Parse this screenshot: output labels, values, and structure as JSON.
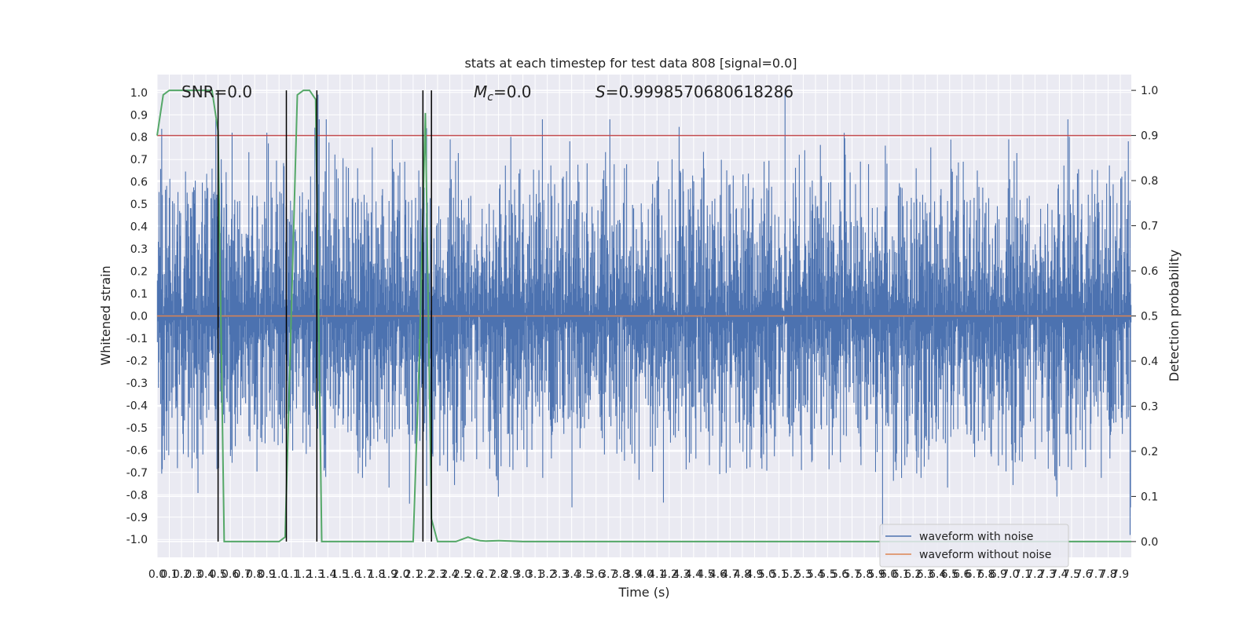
{
  "chart_data": {
    "type": "line",
    "title": "stats at each timestep for test data 808 [signal=0.0]",
    "xlabel": "Time (s)",
    "ylabel": "Whitened strain",
    "y2label": "Detection probability",
    "xlim": [
      0.0,
      7.99
    ],
    "ylim": [
      -1.08,
      1.08
    ],
    "y2lim": [
      -0.035,
      1.035
    ],
    "x_ticks": [
      "0.0",
      "0.1",
      "0.2",
      "0.3",
      "0.4",
      "0.5",
      "0.6",
      "0.7",
      "0.8",
      "0.9",
      "1.0",
      "1.1",
      "1.2",
      "1.3",
      "1.4",
      "1.5",
      "1.6",
      "1.7",
      "1.8",
      "1.9",
      "2.0",
      "2.1",
      "2.2",
      "2.3",
      "2.4",
      "2.5",
      "2.6",
      "2.7",
      "2.8",
      "2.9",
      "3.0",
      "3.1",
      "3.2",
      "3.3",
      "3.4",
      "3.5",
      "3.6",
      "3.7",
      "3.8",
      "3.9",
      "4.0",
      "4.1",
      "4.2",
      "4.3",
      "4.4",
      "4.5",
      "4.6",
      "4.7",
      "4.8",
      "4.9",
      "5.0",
      "5.1",
      "5.2",
      "5.3",
      "5.4",
      "5.5",
      "5.6",
      "5.7",
      "5.8",
      "5.9",
      "6.0",
      "6.1",
      "6.2",
      "6.3",
      "6.4",
      "6.5",
      "6.6",
      "6.7",
      "6.8",
      "6.9",
      "7.0",
      "7.1",
      "7.2",
      "7.3",
      "7.4",
      "7.5",
      "7.6",
      "7.7",
      "7.8",
      "7.9"
    ],
    "y_ticks": [
      "-1.0",
      "-0.9",
      "-0.8",
      "-0.7",
      "-0.6",
      "-0.5",
      "-0.4",
      "-0.3",
      "-0.2",
      "-0.1",
      "0.0",
      "0.1",
      "0.2",
      "0.3",
      "0.4",
      "0.5",
      "0.6",
      "0.7",
      "0.8",
      "0.9",
      "1.0"
    ],
    "y2_ticks": [
      "0.0",
      "0.1",
      "0.2",
      "0.3",
      "0.4",
      "0.5",
      "0.6",
      "0.7",
      "0.8",
      "0.9",
      "1.0"
    ],
    "annotations": {
      "snr": "SNR=0.0",
      "mc_symbol": "M",
      "mc_sub": "c",
      "mc_value": "=0.0",
      "s_symbol": "S",
      "s_value": "=0.9998570680618286"
    },
    "series": [
      {
        "name": "waveform with noise",
        "color": "#4c72b0",
        "peak_abs": 1.0,
        "envelope": 0.4
      },
      {
        "name": "waveform without noise",
        "color": "#dd8452",
        "values": 0.0
      },
      {
        "color": "#55a868",
        "axis": "right",
        "x": [
          0.0,
          0.05,
          0.1,
          0.2,
          0.3,
          0.35,
          0.4,
          0.45,
          0.5,
          0.55,
          0.6,
          0.7,
          0.8,
          0.9,
          0.95,
          1.0,
          1.05,
          1.1,
          1.15,
          1.2,
          1.25,
          1.3,
          1.35,
          1.4,
          1.45,
          1.5,
          1.6,
          1.8,
          2.0,
          2.1,
          2.15,
          2.2,
          2.25,
          2.3,
          2.35,
          2.4,
          2.45,
          2.5,
          2.55,
          2.6,
          2.65,
          2.7,
          2.8,
          2.9,
          3.0,
          3.2,
          3.5,
          4.0,
          5.0,
          6.0,
          7.0,
          7.99
        ],
        "y": [
          0.9,
          0.99,
          1.0,
          1.0,
          1.0,
          1.0,
          1.0,
          1.0,
          0.91,
          0.0,
          0.0,
          0.0,
          0.0,
          0.0,
          0.0,
          0.0,
          0.01,
          0.5,
          0.99,
          1.0,
          1.0,
          0.98,
          0.0,
          0.0,
          0.0,
          0.0,
          0.0,
          0.0,
          0.0,
          0.0,
          0.4,
          0.95,
          0.05,
          0.0,
          0.0,
          0.0,
          0.0,
          0.005,
          0.01,
          0.005,
          0.002,
          0.001,
          0.002,
          0.001,
          0.0,
          0.0,
          0.0,
          0.0,
          0.0,
          0.0,
          0.0,
          0.0
        ]
      }
    ],
    "threshold": {
      "axis": "right",
      "value": 0.9,
      "color": "#c44e52"
    },
    "event_lines_x": [
      0.5,
      1.06,
      1.31,
      2.18,
      2.25
    ],
    "event_line_color": "#000000",
    "grid": true,
    "legend": "bottom-right"
  }
}
